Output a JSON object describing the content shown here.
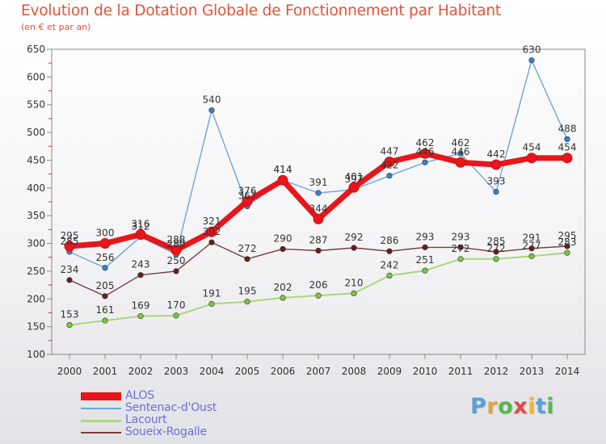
{
  "header": {
    "title": "Evolution de la Dotation Globale de Fonctionnement par Habitant",
    "subtitle": "(en € et par an)"
  },
  "logo": {
    "letters": [
      "P",
      "r",
      "o",
      "x",
      "i",
      "t",
      "i"
    ]
  },
  "colors": {
    "title": "#e0543a",
    "legend_text": "#6c6ce0",
    "axis": "#8a8a8a",
    "tick_text": "#333333",
    "logo": [
      "#5aa0d8",
      "#e6a33a",
      "#58b84a",
      "#e34b47",
      "#f0b631",
      "#5aa0d8",
      "#58b84a"
    ]
  },
  "chart_data": {
    "type": "line",
    "title": "Evolution de la Dotation Globale de Fonctionnement par Habitant",
    "subtitle": "(en € et par an)",
    "xlabel": "",
    "ylabel": "",
    "x": [
      2000,
      2001,
      2002,
      2003,
      2004,
      2005,
      2006,
      2007,
      2008,
      2009,
      2010,
      2011,
      2012,
      2013,
      2014
    ],
    "ylim": [
      100,
      650
    ],
    "yticks": [
      100,
      150,
      200,
      250,
      300,
      350,
      400,
      450,
      500,
      550,
      600,
      650
    ],
    "grid": false,
    "legend_position": "bottom-left",
    "series": [
      {
        "name": "ALOS",
        "color": "#e8161a",
        "marker": "#e8161a",
        "label_values": [
          295,
          300,
          316,
          288,
          321,
          376,
          414,
          344,
          401,
          447,
          462,
          446,
          442,
          454,
          454
        ],
        "values": [
          295,
          300,
          316,
          288,
          321,
          376,
          414,
          344,
          401,
          447,
          462,
          446,
          442,
          454,
          454
        ]
      },
      {
        "name": "Sentenac-d'Oust",
        "color": "#6ea6d6",
        "marker": "#3b7fcf",
        "label_values": [
          285,
          256,
          312,
          280,
          540,
          367,
          414,
          391,
          397,
          422,
          446,
          462,
          393,
          630,
          488
        ],
        "values": [
          285,
          256,
          312,
          280,
          540,
          367,
          414,
          391,
          397,
          422,
          446,
          462,
          393,
          630,
          488
        ]
      },
      {
        "name": "Lacourt",
        "color": "#a8d878",
        "marker": "#7cc644",
        "label_values": [
          153,
          161,
          169,
          170,
          191,
          195,
          202,
          206,
          210,
          242,
          251,
          272,
          272,
          277,
          283
        ],
        "values": [
          153,
          161,
          169,
          170,
          191,
          195,
          202,
          206,
          210,
          242,
          251,
          272,
          272,
          277,
          283
        ]
      },
      {
        "name": "Soueix-Rogalle",
        "color": "#7a3a3a",
        "marker": "#6b1d1d",
        "label_values": [
          234,
          205,
          243,
          250,
          302,
          272,
          290,
          287,
          292,
          286,
          293,
          293,
          285,
          291,
          295
        ],
        "values": [
          234,
          205,
          243,
          250,
          302,
          272,
          290,
          287,
          292,
          286,
          293,
          293,
          285,
          291,
          295
        ]
      }
    ]
  }
}
